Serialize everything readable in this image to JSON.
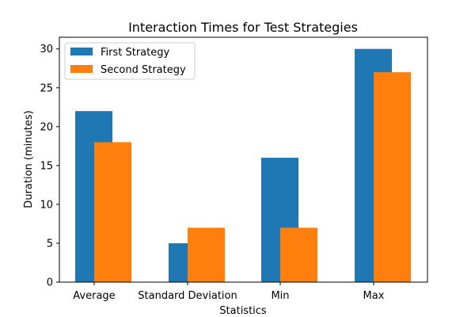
{
  "chart_data": {
    "type": "bar",
    "title": "Interaction Times for Test Strategies",
    "xlabel": "Statistics",
    "ylabel": "Duration (minutes)",
    "categories": [
      "Average",
      "Standard Deviation",
      "Min",
      "Max"
    ],
    "series": [
      {
        "name": "First Strategy",
        "values": [
          22,
          5,
          16,
          30
        ],
        "color": "#1f77b4"
      },
      {
        "name": "Second Strategy",
        "values": [
          18,
          7,
          7,
          27
        ],
        "color": "#ff7f0e"
      }
    ],
    "ylim": [
      0,
      31.5
    ],
    "yticks": [
      0,
      5,
      10,
      15,
      20,
      25,
      30
    ],
    "legend_position": "top-left",
    "grid": false
  }
}
